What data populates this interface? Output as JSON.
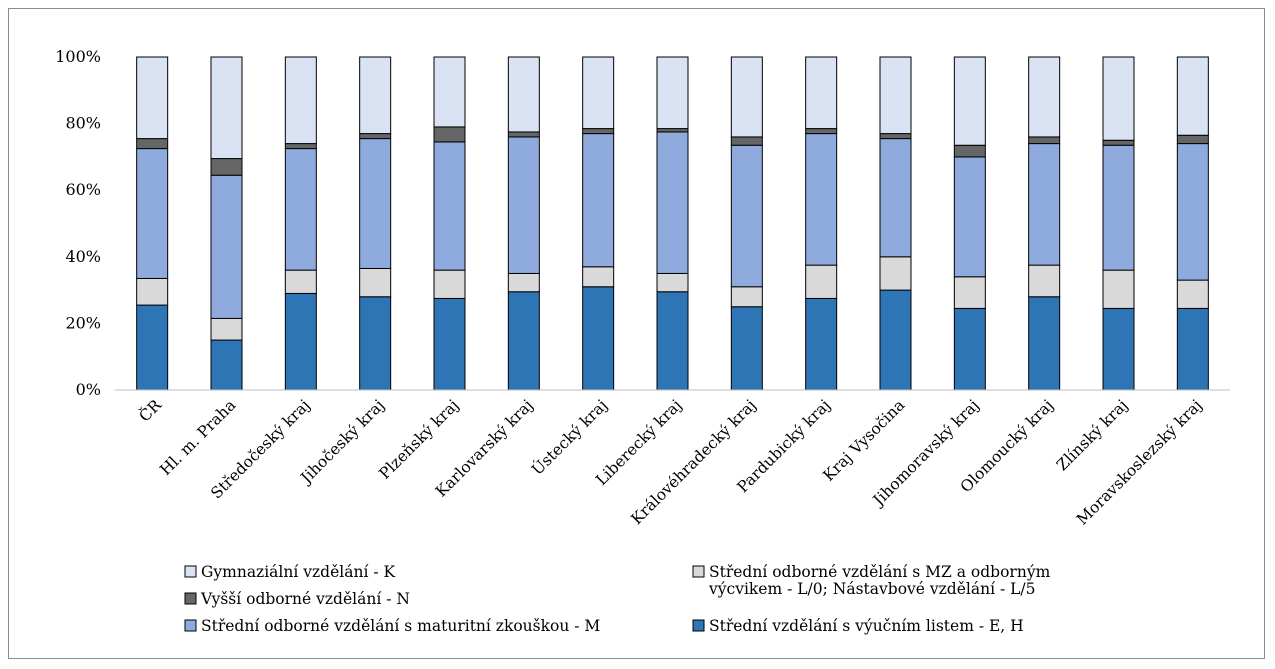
{
  "chart_data": {
    "type": "bar",
    "stacked": "percent",
    "title": "",
    "xlabel": "",
    "ylabel": "",
    "ylim": [
      0,
      100
    ],
    "yticks": [
      "0%",
      "20%",
      "40%",
      "60%",
      "80%",
      "100%"
    ],
    "grid": false,
    "legend_position": "bottom",
    "categories": [
      "ČR",
      "Hl. m. Praha",
      "Středočeský kraj",
      "Jihočeský kraj",
      "Plzeňský kraj",
      "Karlovarský kraj",
      "Ústecký kraj",
      "Liberecký kraj",
      "Královéhradecký kraj",
      "Pardubický kraj",
      "Kraj Vysočina",
      "Jihomoravský kraj",
      "Olomoucký kraj",
      "Zlínský kraj",
      "Moravskoslezský kraj"
    ],
    "series": [
      {
        "name": "Střední vzdělání s výučním listem - E, H",
        "color": "#2e75b6",
        "values": [
          25.5,
          15,
          29,
          28,
          27.5,
          29.5,
          31,
          29.5,
          25,
          27.5,
          30,
          24.5,
          28,
          24.5,
          24.5
        ]
      },
      {
        "name": "Střední odborné vzdělání s MZ a odborným výcvikem - L/0; Nástavbové vzdělání - L/5",
        "color": "#d9d9d9",
        "values": [
          8,
          6.5,
          7,
          8.5,
          8.5,
          5.5,
          6,
          5.5,
          6,
          10,
          10,
          9.5,
          9.5,
          11.5,
          8.5
        ]
      },
      {
        "name": "Střední odborné vzdělání s maturitní zkouškou - M",
        "color": "#8faadc",
        "values": [
          39,
          43,
          36.5,
          39,
          38.5,
          41,
          40,
          42.5,
          42.5,
          39.5,
          35.5,
          36,
          36.5,
          37.5,
          41
        ]
      },
      {
        "name": "Vyšší odborné vzdělání - N",
        "color": "#666666",
        "values": [
          3,
          5,
          1.5,
          1.5,
          4.5,
          1.5,
          1.5,
          1,
          2.5,
          1.5,
          1.5,
          3.5,
          2,
          1.5,
          2.5
        ]
      },
      {
        "name": "Gymnaziální vzdělání - K",
        "color": "#dae3f3",
        "values": [
          24.5,
          30.5,
          26,
          23,
          21,
          22.5,
          21.5,
          21.5,
          24,
          21.5,
          23,
          26.5,
          24,
          25,
          23.5
        ]
      }
    ],
    "legend_order": [
      4,
      1,
      3,
      2,
      0
    ]
  }
}
